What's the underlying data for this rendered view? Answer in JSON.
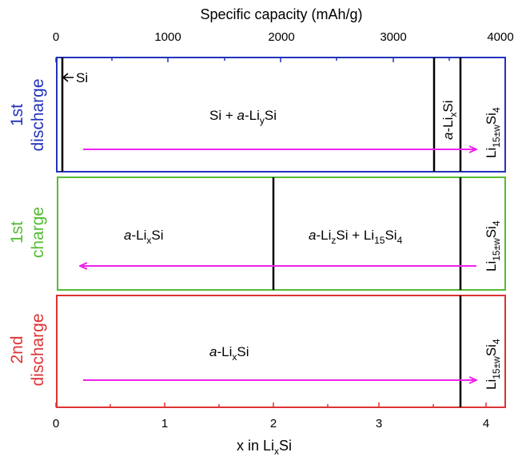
{
  "top_axis": {
    "title": "Specific capacity (mAh/g)",
    "min": 0,
    "max": 4000,
    "ticks": [
      "0",
      "1000",
      "2000",
      "3000",
      "4000"
    ]
  },
  "bottom_axis": {
    "title_prefix": "x in Li",
    "title_sub": "x",
    "title_suffix": "Si",
    "min": 0,
    "max": 4.2,
    "ticks": [
      "0",
      "1",
      "2",
      "3",
      "4"
    ]
  },
  "panels": [
    {
      "label_line1": "1st",
      "label_line2": "discharge",
      "color": "#2233bb",
      "labels": {
        "si": "Si",
        "mix_a": "Si + ",
        "mix_b": "a",
        "mix_c": "-Li",
        "mix_sub": "y",
        "mix_d": "Si",
        "alix_a": "a",
        "alix_b": "-Li",
        "alix_sub": "x",
        "alix_c": "Si",
        "li15_main": "Li",
        "li15_sub": "15±w",
        "li15_si": "Si",
        "li15_sub2": "4"
      }
    },
    {
      "label_line1": "1st",
      "label_line2": "charge",
      "color": "#55bb33",
      "labels": {
        "alix_a": "a",
        "alix_b": "-Li",
        "alix_sub": "x",
        "alix_c": "Si",
        "aliz_a": "a",
        "aliz_b": "-Li",
        "aliz_sub": "z",
        "aliz_c": "Si + Li",
        "aliz_sub2": "15",
        "aliz_d": "Si",
        "aliz_sub3": "4",
        "li15_main": "Li",
        "li15_sub": "15±w",
        "li15_si": "Si",
        "li15_sub2": "4"
      }
    },
    {
      "label_line1": "2nd",
      "label_line2": "discharge",
      "color": "#dd3333",
      "labels": {
        "alix_a": "a",
        "alix_b": "-Li",
        "alix_sub": "x",
        "alix_c": "Si",
        "li15_main": "Li",
        "li15_sub": "15±w",
        "li15_si": "Si",
        "li15_sub2": "4"
      }
    }
  ],
  "arrow_color": "#ee22ee"
}
